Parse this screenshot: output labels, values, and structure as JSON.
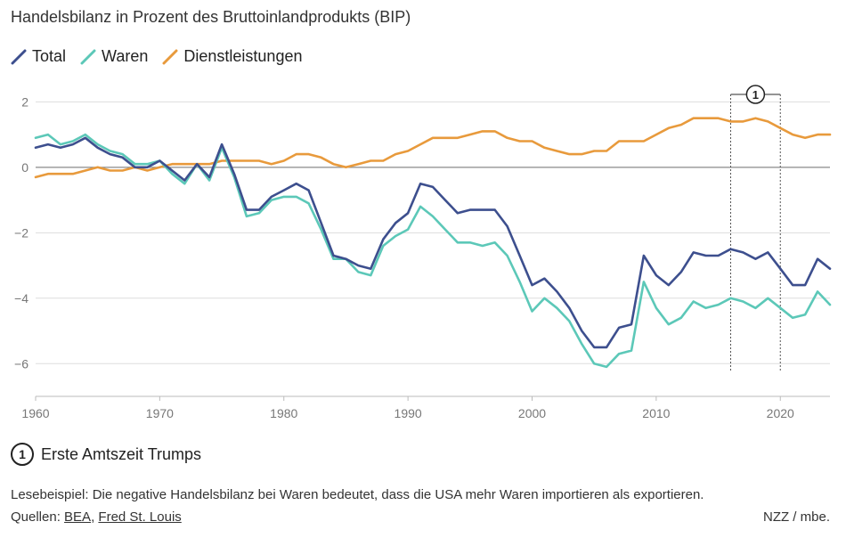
{
  "title": "Handelsbilanz in Prozent des Bruttoinlandprodukts (BIP)",
  "legend": [
    {
      "name": "Total",
      "color": "#3d4f8e"
    },
    {
      "name": "Waren",
      "color": "#5cc8b8"
    },
    {
      "name": "Dienstleistungen",
      "color": "#e89a3c"
    }
  ],
  "annotation": {
    "number": "1",
    "label": "Erste Amtszeit Trumps"
  },
  "footnote": "Lesebeispiel: Die negative Handelsbilanz bei Waren bedeutet, dass die USA mehr Waren importieren als exportieren.",
  "sources": {
    "prefix": "Quellen: ",
    "items": [
      "BEA",
      "Fred St. Louis"
    ],
    "separator": ", "
  },
  "credit": "NZZ / mbe.",
  "chart_data": {
    "type": "line",
    "title": "Handelsbilanz in Prozent des Bruttoinlandprodukts (BIP)",
    "xlabel": "",
    "ylabel": "",
    "xlim": [
      1960,
      2024
    ],
    "ylim": [
      -7,
      2.5
    ],
    "x_ticks": [
      1960,
      1970,
      1980,
      1990,
      2000,
      2010,
      2020
    ],
    "y_ticks": [
      2,
      0,
      -2,
      -4,
      -6
    ],
    "y_tick_labels": [
      "2",
      "0",
      "−2",
      "−4",
      "−6"
    ],
    "grid": true,
    "legend_position": "top-left",
    "highlight_range": {
      "x": [
        2016,
        2020
      ],
      "label": "1"
    },
    "x": [
      1960,
      1961,
      1962,
      1963,
      1964,
      1965,
      1966,
      1967,
      1968,
      1969,
      1970,
      1971,
      1972,
      1973,
      1974,
      1975,
      1976,
      1977,
      1978,
      1979,
      1980,
      1981,
      1982,
      1983,
      1984,
      1985,
      1986,
      1987,
      1988,
      1989,
      1990,
      1991,
      1992,
      1993,
      1994,
      1995,
      1996,
      1997,
      1998,
      1999,
      2000,
      2001,
      2002,
      2003,
      2004,
      2005,
      2006,
      2007,
      2008,
      2009,
      2010,
      2011,
      2012,
      2013,
      2014,
      2015,
      2016,
      2017,
      2018,
      2019,
      2020,
      2021,
      2022,
      2023,
      2024
    ],
    "series": [
      {
        "name": "Total",
        "color": "#3d4f8e",
        "values": [
          0.6,
          0.7,
          0.6,
          0.7,
          0.9,
          0.6,
          0.4,
          0.3,
          0.0,
          0.0,
          0.2,
          -0.1,
          -0.4,
          0.1,
          -0.3,
          0.7,
          -0.2,
          -1.3,
          -1.3,
          -0.9,
          -0.7,
          -0.5,
          -0.7,
          -1.7,
          -2.7,
          -2.8,
          -3.0,
          -3.1,
          -2.2,
          -1.7,
          -1.4,
          -0.5,
          -0.6,
          -1.0,
          -1.4,
          -1.3,
          -1.3,
          -1.3,
          -1.8,
          -2.7,
          -3.6,
          -3.4,
          -3.8,
          -4.3,
          -5.0,
          -5.5,
          -5.5,
          -4.9,
          -4.8,
          -2.7,
          -3.3,
          -3.6,
          -3.2,
          -2.6,
          -2.7,
          -2.7,
          -2.5,
          -2.6,
          -2.8,
          -2.6,
          -3.1,
          -3.6,
          -3.6,
          -2.8,
          -3.1
        ]
      },
      {
        "name": "Waren",
        "color": "#5cc8b8",
        "values": [
          0.9,
          1.0,
          0.7,
          0.8,
          1.0,
          0.7,
          0.5,
          0.4,
          0.1,
          0.1,
          0.2,
          -0.2,
          -0.5,
          0.1,
          -0.4,
          0.6,
          -0.3,
          -1.5,
          -1.4,
          -1.0,
          -0.9,
          -0.9,
          -1.1,
          -1.9,
          -2.8,
          -2.8,
          -3.2,
          -3.3,
          -2.4,
          -2.1,
          -1.9,
          -1.2,
          -1.5,
          -1.9,
          -2.3,
          -2.3,
          -2.4,
          -2.3,
          -2.7,
          -3.5,
          -4.4,
          -4.0,
          -4.3,
          -4.7,
          -5.4,
          -6.0,
          -6.1,
          -5.7,
          -5.6,
          -3.5,
          -4.3,
          -4.8,
          -4.6,
          -4.1,
          -4.3,
          -4.2,
          -4.0,
          -4.1,
          -4.3,
          -4.0,
          -4.3,
          -4.6,
          -4.5,
          -3.8,
          -4.2
        ]
      },
      {
        "name": "Dienstleistungen",
        "color": "#e89a3c",
        "values": [
          -0.3,
          -0.2,
          -0.2,
          -0.2,
          -0.1,
          0.0,
          -0.1,
          -0.1,
          0.0,
          -0.1,
          0.0,
          0.1,
          0.1,
          0.1,
          0.1,
          0.2,
          0.2,
          0.2,
          0.2,
          0.1,
          0.2,
          0.4,
          0.4,
          0.3,
          0.1,
          0.0,
          0.1,
          0.2,
          0.2,
          0.4,
          0.5,
          0.7,
          0.9,
          0.9,
          0.9,
          1.0,
          1.1,
          1.1,
          0.9,
          0.8,
          0.8,
          0.6,
          0.5,
          0.4,
          0.4,
          0.5,
          0.5,
          0.8,
          0.8,
          0.8,
          1.0,
          1.2,
          1.3,
          1.5,
          1.5,
          1.5,
          1.4,
          1.4,
          1.5,
          1.4,
          1.2,
          1.0,
          0.9,
          1.0,
          1.0
        ]
      }
    ]
  }
}
